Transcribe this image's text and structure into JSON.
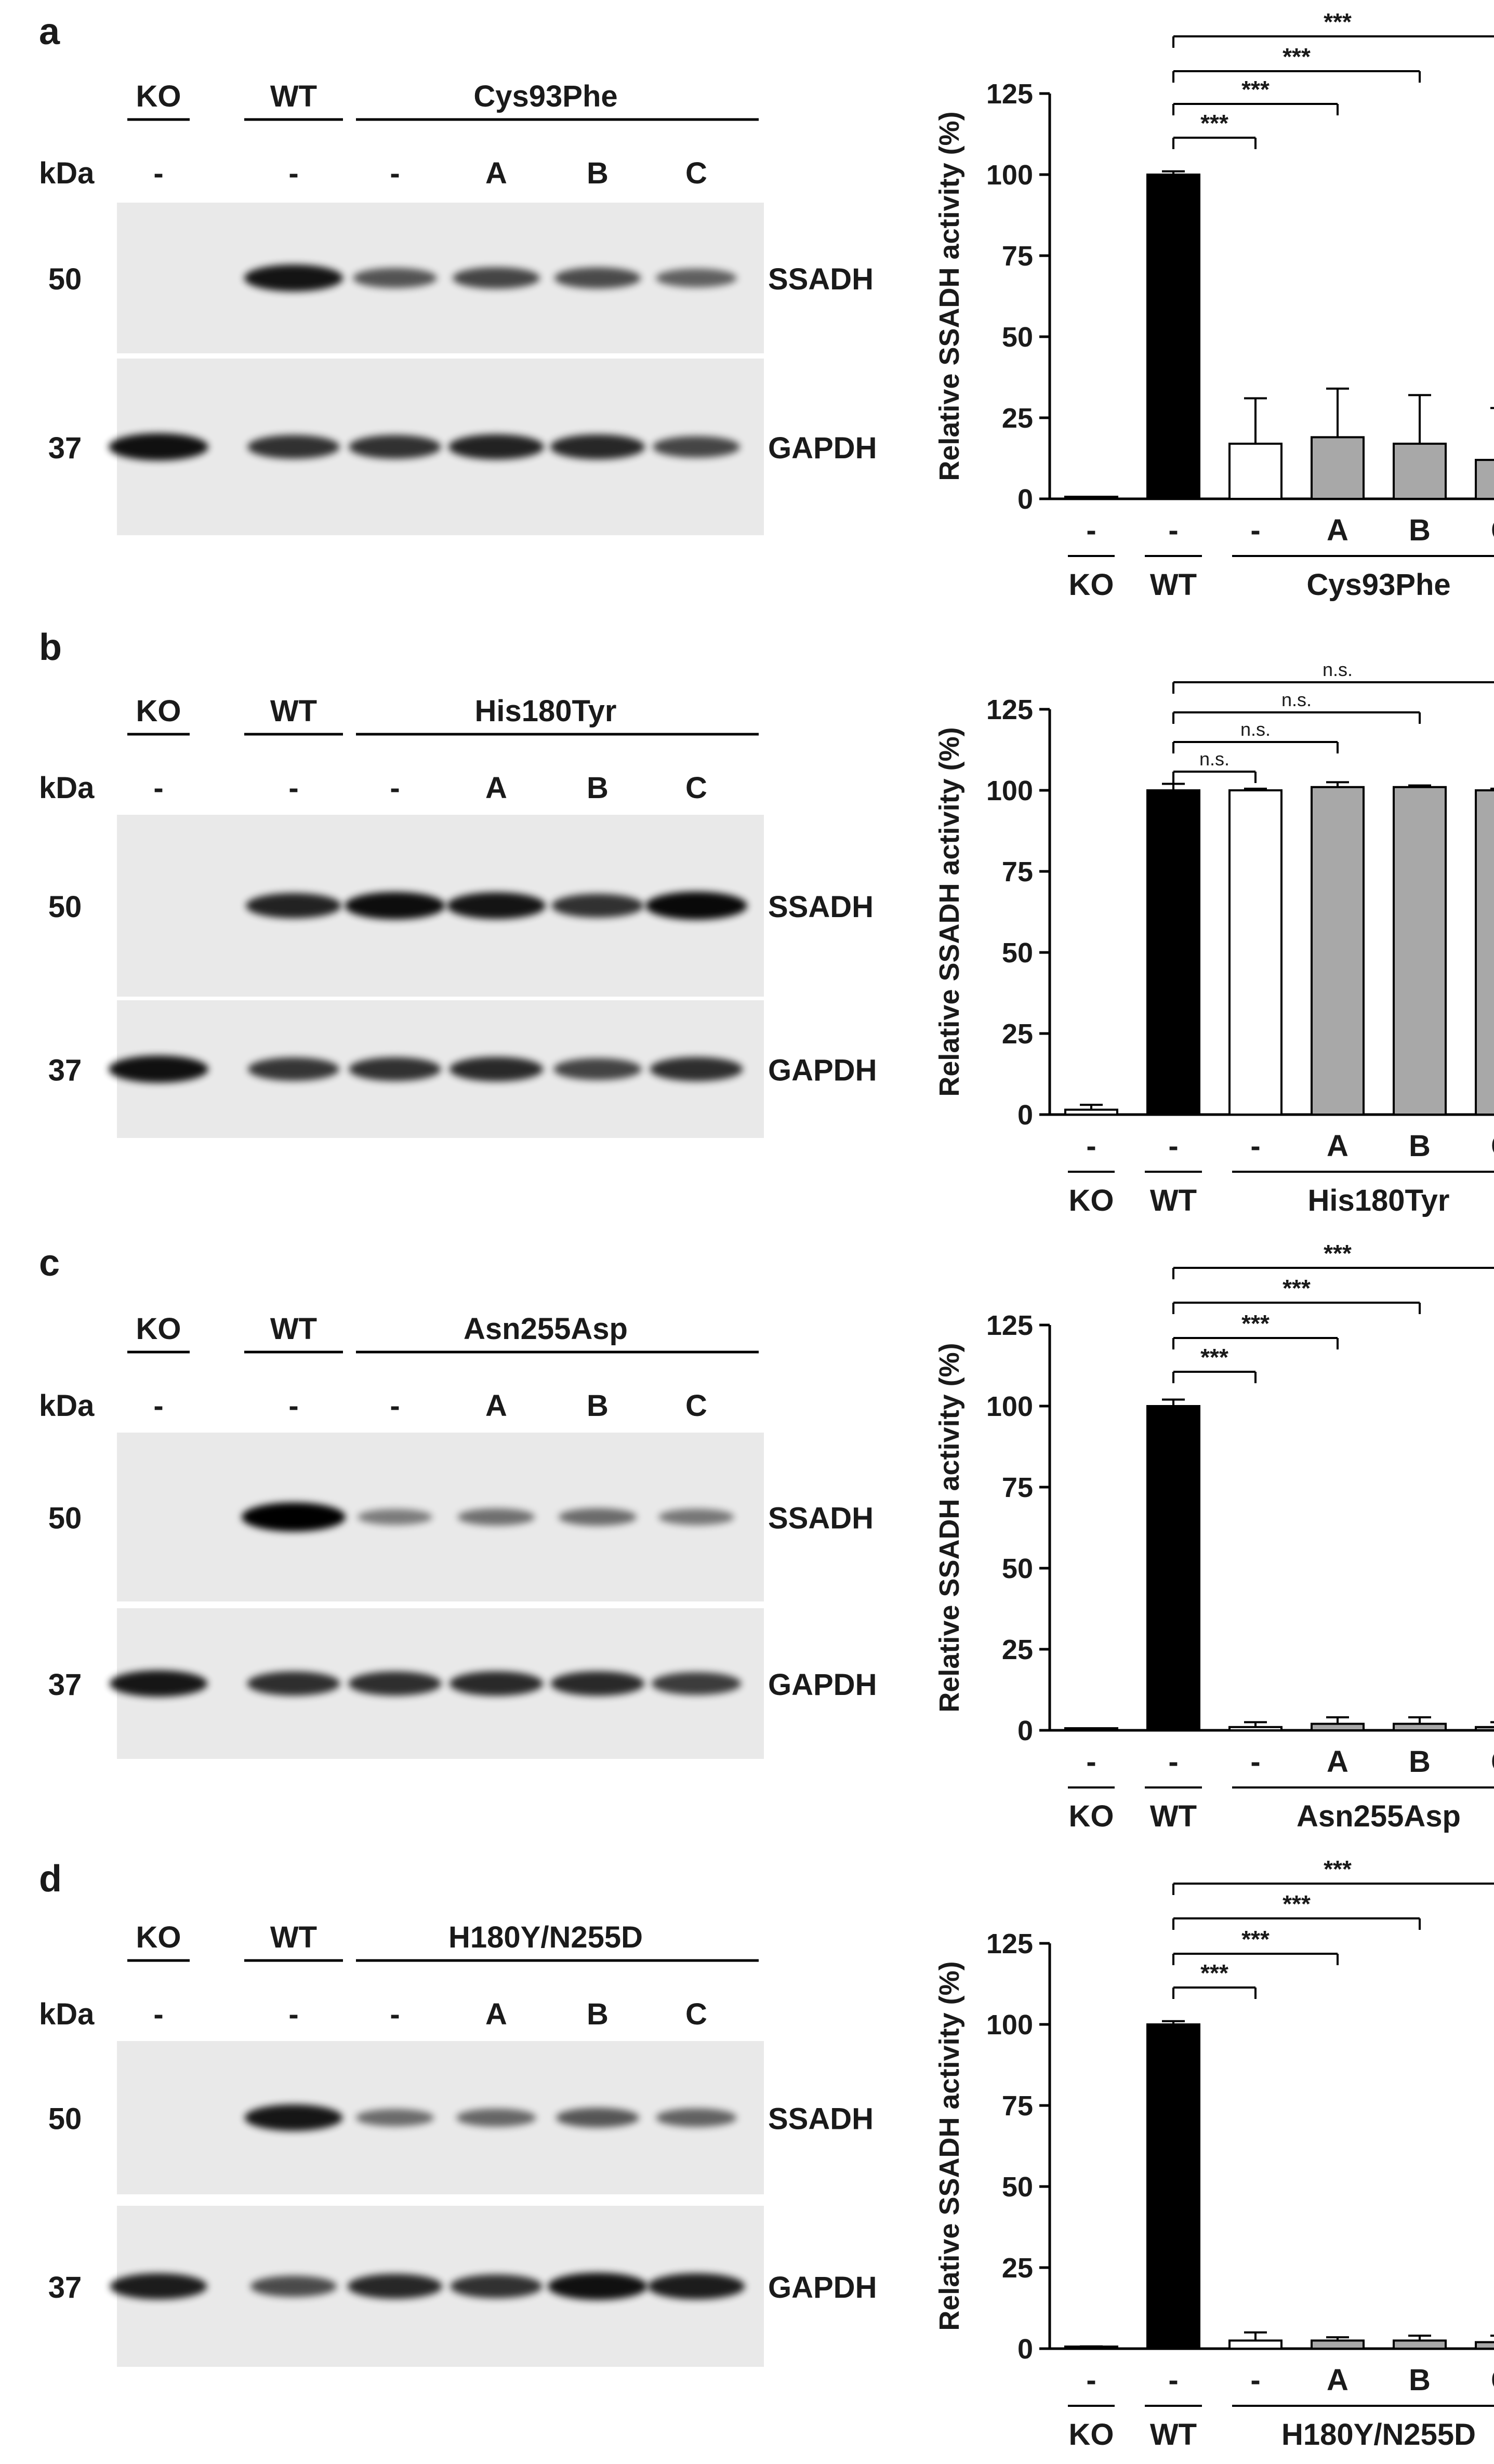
{
  "panels": [
    {
      "label": "a",
      "mutant": "Cys93Phe",
      "ssadh_bands": [
        0,
        0.88,
        0.52,
        0.6,
        0.58,
        0.45
      ],
      "gapdh_bands": [
        0.9,
        0.72,
        0.72,
        0.8,
        0.78,
        0.6
      ],
      "significance": [
        "***",
        "***",
        "***",
        "***"
      ],
      "chart_data": {
        "type": "bar",
        "categories": [
          "-",
          "-",
          "-",
          "A",
          "B",
          "C"
        ],
        "values": [
          0,
          100,
          17,
          19,
          17,
          12
        ],
        "errors": [
          0,
          1,
          14,
          15,
          15,
          16
        ],
        "colors": [
          "#000000",
          "#000000",
          "#ffffff",
          "#a8a8a8",
          "#a8a8a8",
          "#a8a8a8"
        ],
        "ylabel": "Relative SSADH activity (%)",
        "yticks": [
          "0",
          "25",
          "50",
          "75",
          "100",
          "125"
        ],
        "ylim": [
          0,
          125
        ]
      }
    },
    {
      "label": "b",
      "mutant": "His180Tyr",
      "ssadh_bands": [
        0,
        0.8,
        0.92,
        0.88,
        0.72,
        0.95
      ],
      "gapdh_bands": [
        0.9,
        0.7,
        0.72,
        0.76,
        0.62,
        0.74
      ],
      "significance": [
        "n.s.",
        "n.s.",
        "n.s.",
        "n.s."
      ],
      "chart_data": {
        "type": "bar",
        "categories": [
          "-",
          "-",
          "-",
          "A",
          "B",
          "C"
        ],
        "values": [
          1.5,
          100,
          100,
          101,
          101,
          100
        ],
        "errors": [
          1.5,
          2,
          0.5,
          1.5,
          0.5,
          0.5
        ],
        "colors": [
          "#ffffff",
          "#000000",
          "#ffffff",
          "#a8a8a8",
          "#a8a8a8",
          "#a8a8a8"
        ],
        "ylabel": "Relative SSADH activity (%)",
        "yticks": [
          "0",
          "25",
          "50",
          "75",
          "100",
          "125"
        ],
        "ylim": [
          0,
          125
        ]
      }
    },
    {
      "label": "c",
      "mutant": "Asn255Asp",
      "ssadh_bands": [
        0,
        1.0,
        0.3,
        0.36,
        0.38,
        0.32
      ],
      "gapdh_bands": [
        0.86,
        0.74,
        0.74,
        0.76,
        0.76,
        0.66
      ],
      "significance": [
        "***",
        "***",
        "***",
        "***"
      ],
      "chart_data": {
        "type": "bar",
        "categories": [
          "-",
          "-",
          "-",
          "A",
          "B",
          "C"
        ],
        "values": [
          0.3,
          100,
          1,
          2,
          2,
          1
        ],
        "errors": [
          0.2,
          2,
          1.5,
          2,
          2,
          1.5
        ],
        "colors": [
          "#000000",
          "#000000",
          "#ffffff",
          "#a8a8a8",
          "#a8a8a8",
          "#a8a8a8"
        ],
        "ylabel": "Relative SSADH activity (%)",
        "yticks": [
          "0",
          "25",
          "50",
          "75",
          "100",
          "125"
        ],
        "ylim": [
          0,
          125
        ]
      }
    },
    {
      "label": "d",
      "mutant": "H180Y/N255D",
      "ssadh_bands": [
        0,
        0.86,
        0.38,
        0.42,
        0.5,
        0.44
      ],
      "gapdh_bands": [
        0.84,
        0.58,
        0.78,
        0.72,
        0.9,
        0.84
      ],
      "significance": [
        "***",
        "***",
        "***",
        "***"
      ],
      "chart_data": {
        "type": "bar",
        "categories": [
          "-",
          "-",
          "-",
          "A",
          "B",
          "C"
        ],
        "values": [
          0.4,
          100,
          2.5,
          2.5,
          2.5,
          2
        ],
        "errors": [
          0.3,
          1,
          2.5,
          1,
          1.5,
          2
        ],
        "colors": [
          "#000000",
          "#000000",
          "#ffffff",
          "#a8a8a8",
          "#a8a8a8",
          "#a8a8a8"
        ],
        "ylabel": "Relative SSADH activity (%)",
        "yticks": [
          "0",
          "25",
          "50",
          "75",
          "100",
          "125"
        ],
        "ylim": [
          0,
          125
        ]
      }
    }
  ],
  "blot": {
    "group_ko": "KO",
    "group_wt": "WT",
    "kda_label": "kDa",
    "lane_labels": [
      "-",
      "-",
      "-",
      "A",
      "B",
      "C"
    ],
    "marker_50": "50",
    "marker_37": "37",
    "ssadh_label": "SSADH",
    "gapdh_label": "GAPDH"
  },
  "chart_groups": {
    "ko": "KO",
    "wt": "WT"
  }
}
